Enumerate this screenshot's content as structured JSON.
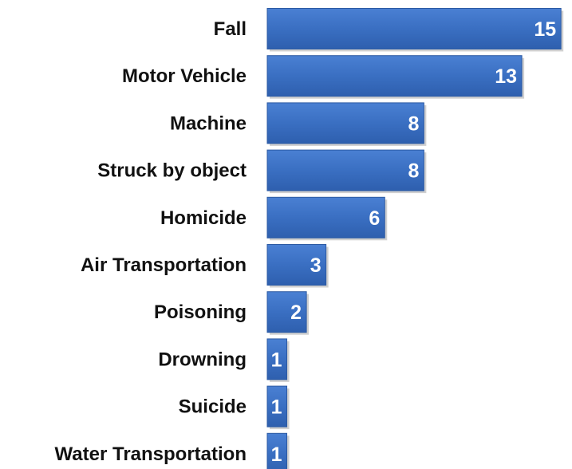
{
  "chart_data": {
    "type": "bar",
    "orientation": "horizontal",
    "categories": [
      "Fall",
      "Motor Vehicle",
      "Machine",
      "Struck by object",
      "Homicide",
      "Air Transportation",
      "Poisoning",
      "Drowning",
      "Suicide",
      "Water Transportation"
    ],
    "values": [
      15,
      13,
      8,
      8,
      6,
      3,
      2,
      1,
      1,
      1
    ],
    "value_labels": [
      "15",
      "13",
      "8",
      "8",
      "6",
      "3",
      "2",
      "1",
      "1",
      "1"
    ],
    "title": "",
    "xlabel": "",
    "ylabel": "",
    "xlim": [
      0,
      15.4
    ],
    "grid": false,
    "legend": "none",
    "colors": {
      "bar": "#3a6fc2",
      "bar_edge": "#2c5aa3",
      "bar_shadow": "#b0b0b0",
      "value_text": "#ffffff",
      "category_text": "#111111"
    }
  }
}
